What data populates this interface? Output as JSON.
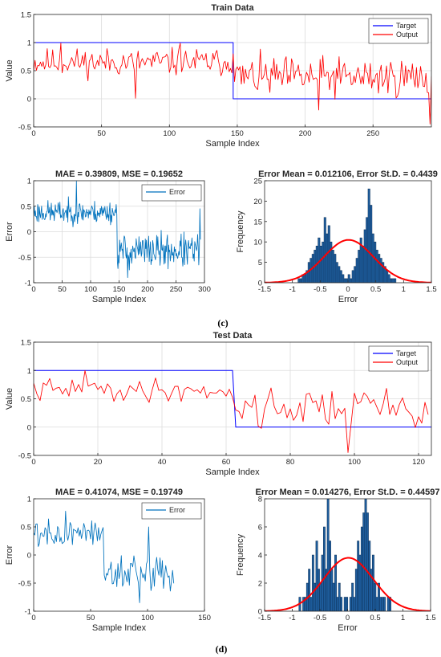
{
  "colors": {
    "target": "#0000ff",
    "output": "#ff0000",
    "error_line": "#0072bd",
    "hist_bar": "#1f5fa0",
    "hist_edge": "#0b2d52",
    "fit": "#ff0000",
    "grid": "#dcdcdc"
  },
  "captions": [
    "(c)",
    "(d)"
  ],
  "chart_data": [
    {
      "id": "train_main",
      "type": "line",
      "title": "Train Data",
      "xlabel": "Sample Index",
      "ylabel": "Value",
      "xlim": [
        0,
        293
      ],
      "ylim": [
        -0.5,
        1.5
      ],
      "xticks": [
        0,
        50,
        100,
        150,
        200,
        250
      ],
      "yticks": [
        -0.5,
        0,
        0.5,
        1,
        1.5
      ],
      "grid": true,
      "legend": "top-right",
      "series": [
        {
          "name": "Target",
          "kind": "step",
          "x": [
            0,
            147,
            147,
            293
          ],
          "y": [
            1,
            1,
            0,
            0
          ]
        },
        {
          "name": "Output",
          "kind": "noise",
          "seed": 11,
          "n": 294,
          "segments": [
            {
              "to": 147,
              "mean": 0.65,
              "amp": 0.22
            },
            {
              "to": 294,
              "mean": 0.38,
              "amp": 0.32
            }
          ],
          "anchors": [
            [
              20,
              0.99
            ],
            [
              75,
              0.01
            ],
            [
              108,
              0.99
            ],
            [
              147,
              0.8
            ],
            [
              210,
              -0.2
            ],
            [
              292,
              -0.45
            ]
          ]
        }
      ]
    },
    {
      "id": "train_error",
      "type": "line",
      "title": "MAE = 0.39809, MSE = 0.19652",
      "xlabel": "Sample Index",
      "ylabel": "Error",
      "xlim": [
        0,
        300
      ],
      "ylim": [
        -1,
        1
      ],
      "xticks": [
        0,
        50,
        100,
        150,
        200,
        250,
        300
      ],
      "yticks": [
        -1,
        -0.5,
        0,
        0.5,
        1
      ],
      "grid": true,
      "legend": "top-right",
      "series": [
        {
          "name": "Error",
          "kind": "noise",
          "seed": 23,
          "n": 294,
          "segments": [
            {
              "to": 147,
              "mean": 0.38,
              "amp": 0.2
            },
            {
              "to": 294,
              "mean": -0.38,
              "amp": 0.3
            }
          ],
          "anchors": [
            [
              75,
              0.99
            ],
            [
              165,
              -0.9
            ],
            [
              292,
              0.45
            ]
          ]
        }
      ]
    },
    {
      "id": "train_hist",
      "type": "bar",
      "title": "Error Mean = 0.012106, Error St.D. = 0.4439",
      "xlabel": "Error",
      "ylabel": "Frequency",
      "xlim": [
        -1.5,
        1.5
      ],
      "ylim": [
        0,
        25
      ],
      "xticks": [
        -1.5,
        -1,
        -0.5,
        0,
        0.5,
        1,
        1.5
      ],
      "yticks": [
        0,
        5,
        10,
        15,
        20,
        25
      ],
      "grid": false,
      "bin_start": -0.9,
      "bin_width": 0.036,
      "counts": [
        1,
        1,
        2,
        2,
        3,
        5,
        6,
        7,
        8,
        9,
        11,
        9,
        10,
        16,
        12,
        14,
        10,
        8,
        7,
        5,
        4,
        3,
        2,
        1,
        1,
        2,
        1,
        3,
        4,
        6,
        8,
        11,
        9,
        13,
        16,
        23,
        19,
        12,
        10,
        8,
        7,
        6,
        5,
        4,
        3,
        2,
        1,
        1,
        1
      ],
      "fit": {
        "mean": 0.012106,
        "std": 0.4439,
        "peak": 10.5
      }
    },
    {
      "id": "test_main",
      "type": "line",
      "title": "Test Data",
      "xlabel": "Sample Index",
      "ylabel": "Value",
      "xlim": [
        0,
        124
      ],
      "ylim": [
        -0.5,
        1.5
      ],
      "xticks": [
        0,
        20,
        40,
        60,
        80,
        100,
        120
      ],
      "yticks": [
        -0.5,
        0,
        0.5,
        1,
        1.5
      ],
      "grid": true,
      "legend": "top-right",
      "series": [
        {
          "name": "Target",
          "kind": "step",
          "x": [
            0,
            62,
            63,
            124
          ],
          "y": [
            1,
            1,
            0,
            0
          ]
        },
        {
          "name": "Output",
          "kind": "noise",
          "seed": 41,
          "n": 124,
          "segments": [
            {
              "to": 62,
              "mean": 0.65,
              "amp": 0.18
            },
            {
              "to": 124,
              "mean": 0.35,
              "amp": 0.32
            }
          ],
          "anchors": [
            [
              16,
              1.0
            ],
            [
              98,
              -0.45
            ],
            [
              100,
              0.6
            ],
            [
              123,
              0.22
            ]
          ]
        }
      ]
    },
    {
      "id": "test_error",
      "type": "line",
      "title": "MAE = 0.41074, MSE = 0.19749",
      "xlabel": "Sample Index",
      "ylabel": "Error",
      "xlim": [
        0,
        150
      ],
      "ylim": [
        -1,
        1
      ],
      "xticks": [
        0,
        50,
        100,
        150
      ],
      "yticks": [
        -1,
        -0.5,
        0,
        0.5,
        1
      ],
      "grid": false,
      "legend": "top-right",
      "series": [
        {
          "name": "Error",
          "kind": "noise",
          "seed": 57,
          "n": 124,
          "segments": [
            {
              "to": 62,
              "mean": 0.38,
              "amp": 0.2
            },
            {
              "to": 124,
              "mean": -0.35,
              "amp": 0.32
            }
          ],
          "anchors": [
            [
              28,
              0.78
            ],
            [
              93,
              -0.85
            ],
            [
              101,
              0.5
            ]
          ]
        }
      ]
    },
    {
      "id": "test_hist",
      "type": "bar",
      "title": "Error Mean = 0.014276, Error St.D. = 0.44597",
      "xlabel": "Error",
      "ylabel": "Frequency",
      "xlim": [
        -1.5,
        1.5
      ],
      "ylim": [
        0,
        8
      ],
      "xticks": [
        -1.5,
        -1,
        -0.5,
        0,
        0.5,
        1,
        1.5
      ],
      "yticks": [
        0,
        2,
        4,
        6,
        8
      ],
      "grid": false,
      "bin_start": -0.88,
      "bin_width": 0.034,
      "counts": [
        1,
        0,
        1,
        1,
        2,
        3,
        1,
        4,
        2,
        5,
        3,
        2,
        4,
        6,
        3,
        8,
        5,
        3,
        2,
        4,
        1,
        2,
        1,
        0,
        1,
        1,
        0,
        1,
        2,
        1,
        3,
        5,
        4,
        6,
        7,
        8,
        7,
        5,
        3,
        4,
        2,
        1,
        2,
        1,
        1,
        1,
        0,
        1,
        1
      ],
      "fit": {
        "mean": 0.014276,
        "std": 0.44597,
        "peak": 3.8
      }
    }
  ]
}
